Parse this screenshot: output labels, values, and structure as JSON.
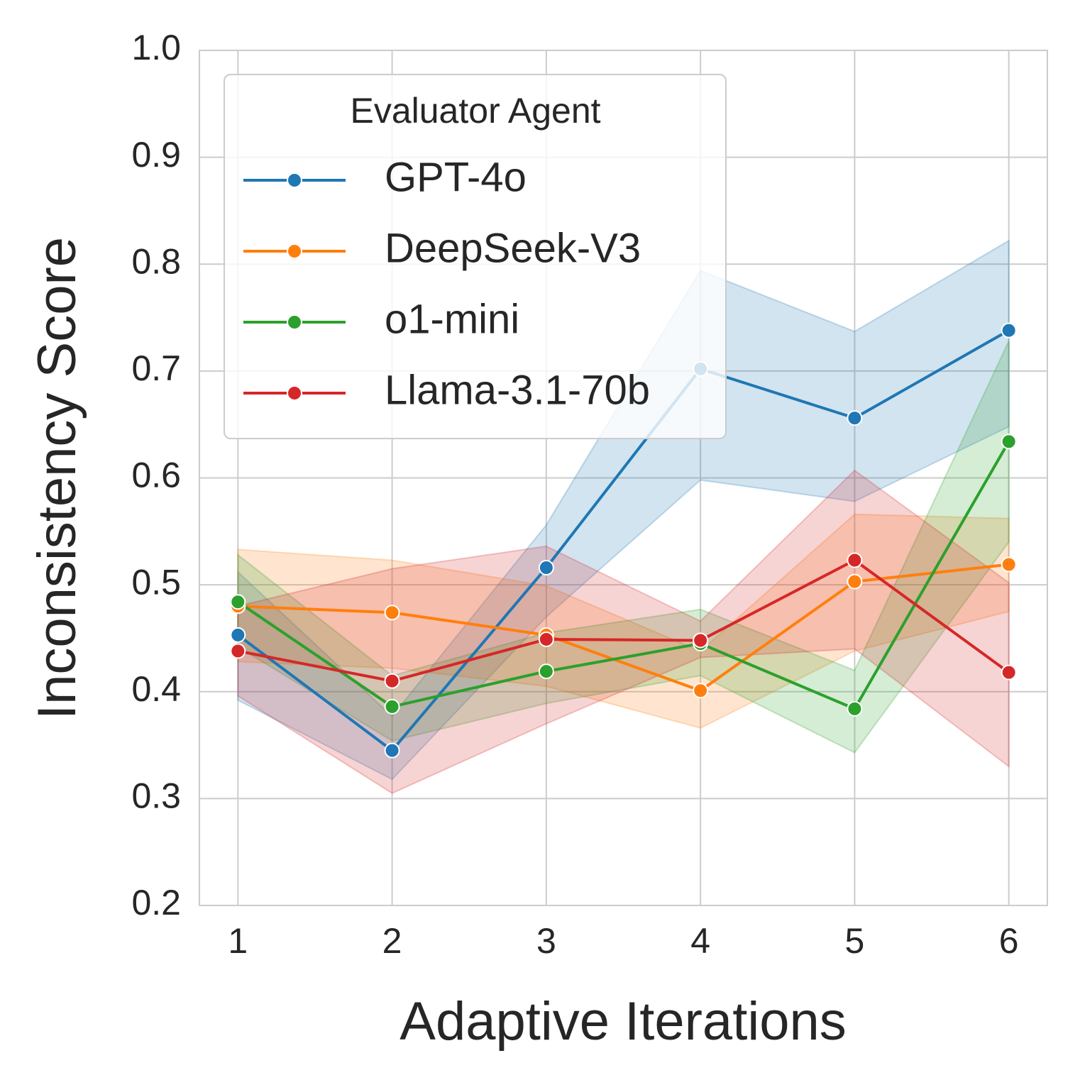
{
  "chart_data": {
    "type": "line",
    "xlabel": "Adaptive Iterations",
    "ylabel": "Inconsistency Score",
    "x": [
      1,
      2,
      3,
      4,
      5,
      6
    ],
    "xlim": [
      0.75,
      6.25
    ],
    "ylim": [
      0.2,
      1.0
    ],
    "xticks": [
      "1",
      "2",
      "3",
      "4",
      "5",
      "6"
    ],
    "yticks": [
      "0.2",
      "0.3",
      "0.4",
      "0.5",
      "0.6",
      "0.7",
      "0.8",
      "0.9",
      "1.0"
    ],
    "grid": true,
    "legend": {
      "title": "Evaluator Agent",
      "placement": "top-left"
    },
    "series": [
      {
        "name": "GPT-4o",
        "color": "#1f77b4",
        "values": [
          0.453,
          0.345,
          0.516,
          0.702,
          0.656,
          0.738
        ],
        "lower": [
          0.392,
          0.318,
          0.47,
          0.598,
          0.578,
          0.648
        ],
        "upper": [
          0.512,
          0.377,
          0.556,
          0.794,
          0.737,
          0.822
        ]
      },
      {
        "name": "DeepSeek-V3",
        "color": "#ff7f0e",
        "values": [
          0.48,
          0.474,
          0.453,
          0.401,
          0.503,
          0.519
        ],
        "lower": [
          0.428,
          0.422,
          0.405,
          0.366,
          0.438,
          0.475
        ],
        "upper": [
          0.533,
          0.523,
          0.499,
          0.438,
          0.566,
          0.562
        ]
      },
      {
        "name": "o1-mini",
        "color": "#2ca02c",
        "values": [
          0.484,
          0.386,
          0.419,
          0.445,
          0.384,
          0.634
        ],
        "lower": [
          0.442,
          0.354,
          0.389,
          0.415,
          0.343,
          0.54
        ],
        "upper": [
          0.528,
          0.415,
          0.455,
          0.477,
          0.42,
          0.728
        ]
      },
      {
        "name": "Llama-3.1-70b",
        "color": "#d62728",
        "values": [
          0.438,
          0.41,
          0.449,
          0.448,
          0.523,
          0.418
        ],
        "lower": [
          0.396,
          0.305,
          0.37,
          0.432,
          0.44,
          0.33
        ],
        "upper": [
          0.48,
          0.515,
          0.536,
          0.466,
          0.607,
          0.502
        ]
      }
    ]
  }
}
